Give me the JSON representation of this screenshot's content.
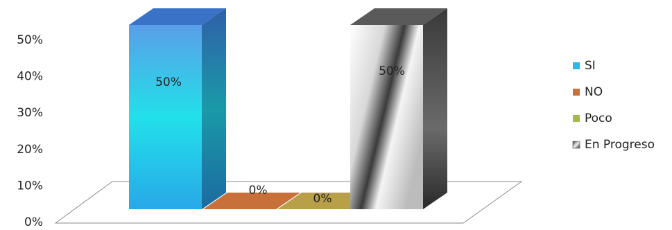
{
  "chart_data": {
    "type": "bar",
    "title": "",
    "xlabel": "",
    "ylabel": "",
    "ylim": [
      0,
      50
    ],
    "y_ticks": [
      "0%",
      "10%",
      "20%",
      "30%",
      "40%",
      "50%"
    ],
    "grid": false,
    "legend_position": "right",
    "style": "3d",
    "categories": [
      "SI",
      "NO",
      "Poco",
      "En Progreso"
    ],
    "values": [
      50,
      0,
      0,
      50
    ],
    "data_labels": [
      "50%",
      "0%",
      "0%",
      "50%"
    ],
    "colors": {
      "SI": "#2ab8e8",
      "NO": "#c8703a",
      "Poco": "#a8b84a",
      "En Progreso": "#9a9a9a"
    },
    "legend": [
      {
        "label": "SI",
        "icon": "blue-square-icon"
      },
      {
        "label": "NO",
        "icon": "orange-square-icon"
      },
      {
        "label": "Poco",
        "icon": "green-square-icon"
      },
      {
        "label": "En Progreso",
        "icon": "gray-gradient-square-icon"
      }
    ]
  }
}
